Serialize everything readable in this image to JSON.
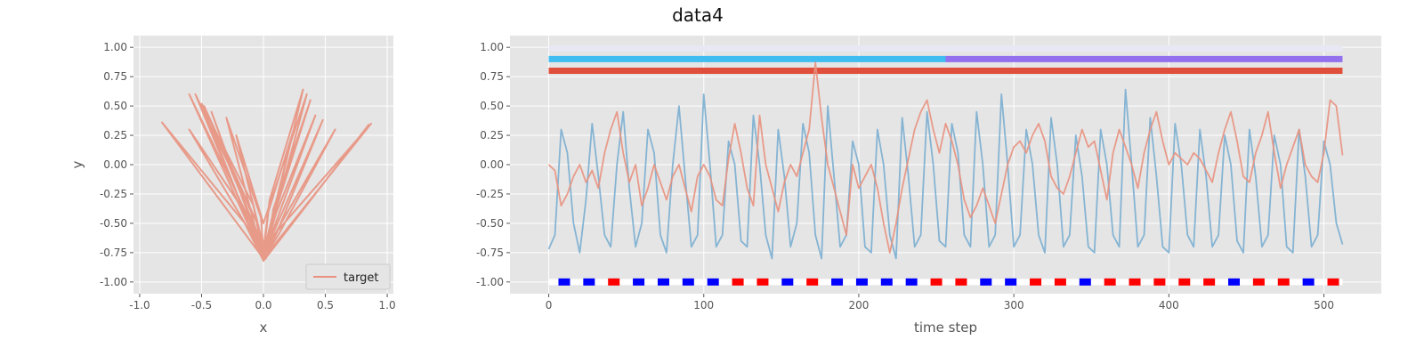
{
  "title": "data4",
  "chart_data": [
    {
      "type": "line",
      "xlabel": "x",
      "ylabel": "y",
      "xlim": [
        -1.05,
        1.05
      ],
      "ylim": [
        -1.1,
        1.1
      ],
      "xticks": [
        "-1.0",
        "-0.5",
        "0.0",
        "0.5",
        "1.0"
      ],
      "yticks": [
        "1.00",
        "0.75",
        "0.50",
        "0.25",
        "0.00",
        "-0.25",
        "-0.50",
        "-0.75",
        "-1.00"
      ],
      "grid": true,
      "legend": {
        "placement": "lower-right",
        "entries": [
          "target"
        ]
      },
      "colors": {
        "target": "#e8917e"
      },
      "series": [
        {
          "name": "target",
          "x": [
            0.0,
            -0.55,
            -0.1,
            -0.02,
            0.0,
            -0.5,
            -0.08,
            0.0,
            0.32,
            0.05,
            0.0,
            0.38,
            0.08,
            0.02,
            -0.6,
            -0.12,
            0.0,
            0.42,
            0.1,
            0.0,
            -0.82,
            -0.15,
            0.0,
            0.85,
            0.2,
            0.03,
            -0.48,
            -0.05,
            0.0,
            0.58,
            0.12,
            0.0,
            -0.3,
            -0.02,
            0.0,
            0.25,
            0.04,
            0.0,
            -0.42,
            -0.08,
            0.03,
            0.48,
            0.1,
            0.0,
            -0.6,
            -0.1,
            0.0,
            0.35,
            0.0,
            -0.22,
            0.0,
            0.87,
            0.15,
            0.0
          ],
          "y": [
            -0.8,
            0.6,
            -0.4,
            -0.75,
            -0.82,
            0.52,
            -0.35,
            -0.8,
            0.64,
            -0.3,
            -0.72,
            0.55,
            -0.38,
            -0.8,
            0.3,
            -0.45,
            -0.78,
            0.42,
            -0.42,
            -0.8,
            0.36,
            -0.5,
            -0.82,
            0.34,
            -0.55,
            -0.78,
            0.5,
            -0.5,
            -0.76,
            0.3,
            -0.6,
            -0.8,
            0.4,
            -0.45,
            -0.75,
            0.32,
            -0.4,
            -0.77,
            0.45,
            -0.55,
            -0.7,
            0.38,
            -0.6,
            -0.8,
            0.6,
            -0.5,
            -0.78,
            0.6,
            -0.5,
            0.25,
            -0.7,
            0.35,
            -0.6,
            -0.8
          ]
        }
      ]
    },
    {
      "type": "line",
      "xlabel": "time step",
      "ylabel": "",
      "xlim": [
        -25,
        537
      ],
      "ylim": [
        -1.1,
        1.1
      ],
      "xticks": [
        "0",
        "100",
        "200",
        "300",
        "400",
        "500"
      ],
      "yticks": [
        "1.00",
        "0.75",
        "0.50",
        "0.25",
        "0.00",
        "-0.25",
        "-0.50",
        "-0.75",
        "-1.00"
      ],
      "grid": true,
      "colors": {
        "blue_series": "#7aaed0",
        "red_series": "#e8917e",
        "band_top": "#e8e8f4",
        "band_cyan": "#3fbcf0",
        "band_purple": "#9370ee",
        "band_red": "#e04e3c",
        "marker_blue": "#0000ff",
        "marker_red": "#ff0000"
      },
      "bands": [
        {
          "y": 0.99,
          "start": 0,
          "end": 512,
          "color": "#e8e8f4"
        },
        {
          "y": 0.9,
          "start": 0,
          "end": 256,
          "color": "#3fbcf0"
        },
        {
          "y": 0.9,
          "start": 256,
          "end": 512,
          "color": "#9370ee"
        },
        {
          "y": 0.8,
          "start": 0,
          "end": 512,
          "color": "#e04e3c"
        }
      ],
      "markers": {
        "y": -1.0,
        "x": [
          10,
          26,
          42,
          58,
          74,
          90,
          106,
          122,
          138,
          154,
          170,
          186,
          202,
          218,
          234,
          250,
          266,
          282,
          298,
          314,
          330,
          346,
          362,
          378,
          394,
          410,
          426,
          442,
          458,
          474,
          490,
          506
        ],
        "colors": [
          "blue",
          "blue",
          "red",
          "blue",
          "blue",
          "blue",
          "blue",
          "red",
          "red",
          "blue",
          "red",
          "blue",
          "blue",
          "blue",
          "blue",
          "red",
          "red",
          "blue",
          "blue",
          "red",
          "red",
          "blue",
          "red",
          "red",
          "red",
          "red",
          "red",
          "blue",
          "red",
          "red",
          "blue",
          "red"
        ]
      },
      "series": [
        {
          "name": "",
          "color": "#7aaed0",
          "x": [
            0,
            4,
            8,
            12,
            16,
            20,
            24,
            28,
            32,
            36,
            40,
            44,
            48,
            52,
            56,
            60,
            64,
            68,
            72,
            76,
            80,
            84,
            88,
            92,
            96,
            100,
            104,
            108,
            112,
            116,
            120,
            124,
            128,
            132,
            136,
            140,
            144,
            148,
            152,
            156,
            160,
            164,
            168,
            172,
            176,
            180,
            184,
            188,
            192,
            196,
            200,
            204,
            208,
            212,
            216,
            220,
            224,
            228,
            232,
            236,
            240,
            244,
            248,
            252,
            256,
            260,
            264,
            268,
            272,
            276,
            280,
            284,
            288,
            292,
            296,
            300,
            304,
            308,
            312,
            316,
            320,
            324,
            328,
            332,
            336,
            340,
            344,
            348,
            352,
            356,
            360,
            364,
            368,
            372,
            376,
            380,
            384,
            388,
            392,
            396,
            400,
            404,
            408,
            412,
            416,
            420,
            424,
            428,
            432,
            436,
            440,
            444,
            448,
            452,
            456,
            460,
            464,
            468,
            472,
            476,
            480,
            484,
            488,
            492,
            496,
            500,
            504,
            508,
            512
          ],
          "y": [
            -0.72,
            -0.6,
            0.3,
            0.1,
            -0.5,
            -0.75,
            -0.3,
            0.35,
            -0.1,
            -0.6,
            -0.7,
            0.0,
            0.45,
            -0.2,
            -0.7,
            -0.5,
            0.3,
            0.1,
            -0.6,
            -0.75,
            0.0,
            0.5,
            -0.1,
            -0.7,
            -0.6,
            0.6,
            0.0,
            -0.7,
            -0.6,
            0.2,
            0.0,
            -0.65,
            -0.7,
            0.42,
            0.0,
            -0.6,
            -0.8,
            0.3,
            -0.1,
            -0.7,
            -0.5,
            0.35,
            0.1,
            -0.6,
            -0.8,
            0.5,
            -0.1,
            -0.7,
            -0.6,
            0.2,
            0.0,
            -0.7,
            -0.75,
            0.3,
            0.0,
            -0.6,
            -0.8,
            0.4,
            -0.1,
            -0.7,
            -0.6,
            0.45,
            0.0,
            -0.65,
            -0.7,
            0.35,
            0.1,
            -0.6,
            -0.7,
            0.45,
            0.0,
            -0.7,
            -0.6,
            0.6,
            0.0,
            -0.7,
            -0.6,
            0.3,
            0.0,
            -0.6,
            -0.75,
            0.4,
            0.0,
            -0.7,
            -0.6,
            0.25,
            -0.1,
            -0.7,
            -0.75,
            0.3,
            0.0,
            -0.6,
            -0.7,
            0.64,
            0.0,
            -0.7,
            -0.6,
            0.4,
            -0.1,
            -0.7,
            -0.75,
            0.35,
            0.0,
            -0.6,
            -0.7,
            0.3,
            -0.1,
            -0.7,
            -0.6,
            0.25,
            0.0,
            -0.65,
            -0.75,
            0.3,
            -0.1,
            -0.7,
            -0.6,
            0.25,
            0.0,
            -0.7,
            -0.75,
            0.3,
            -0.1,
            -0.7,
            -0.6,
            0.2,
            0.0,
            -0.5,
            -0.68
          ]
        },
        {
          "name": "",
          "color": "#e8917e",
          "x": [
            0,
            4,
            8,
            12,
            16,
            20,
            24,
            28,
            32,
            36,
            40,
            44,
            48,
            52,
            56,
            60,
            64,
            68,
            72,
            76,
            80,
            84,
            88,
            92,
            96,
            100,
            104,
            108,
            112,
            116,
            120,
            124,
            128,
            132,
            136,
            140,
            144,
            148,
            152,
            156,
            160,
            164,
            168,
            172,
            176,
            180,
            184,
            188,
            192,
            196,
            200,
            204,
            208,
            212,
            216,
            220,
            224,
            228,
            232,
            236,
            240,
            244,
            248,
            252,
            256,
            260,
            264,
            268,
            272,
            276,
            280,
            284,
            288,
            292,
            296,
            300,
            304,
            308,
            312,
            316,
            320,
            324,
            328,
            332,
            336,
            340,
            344,
            348,
            352,
            356,
            360,
            364,
            368,
            372,
            376,
            380,
            384,
            388,
            392,
            396,
            400,
            404,
            408,
            412,
            416,
            420,
            424,
            428,
            432,
            436,
            440,
            444,
            448,
            452,
            456,
            460,
            464,
            468,
            472,
            476,
            480,
            484,
            488,
            492,
            496,
            500,
            504,
            508,
            512
          ],
          "y": [
            0.0,
            -0.05,
            -0.35,
            -0.25,
            -0.1,
            0.0,
            -0.15,
            -0.05,
            -0.2,
            0.1,
            0.3,
            0.45,
            0.1,
            -0.15,
            0.0,
            -0.35,
            -0.2,
            0.0,
            -0.15,
            -0.3,
            -0.1,
            0.0,
            -0.2,
            -0.4,
            -0.1,
            0.0,
            -0.1,
            -0.3,
            -0.35,
            0.05,
            0.35,
            0.1,
            -0.2,
            -0.35,
            0.42,
            0.0,
            -0.2,
            -0.4,
            -0.15,
            0.0,
            -0.1,
            0.1,
            0.3,
            0.87,
            0.4,
            0.0,
            -0.2,
            -0.4,
            -0.6,
            0.0,
            -0.2,
            -0.1,
            0.0,
            -0.2,
            -0.5,
            -0.75,
            -0.5,
            -0.2,
            0.05,
            0.3,
            0.45,
            0.55,
            0.3,
            0.1,
            0.35,
            0.2,
            0.0,
            -0.3,
            -0.45,
            -0.35,
            -0.2,
            -0.35,
            -0.5,
            -0.25,
            0.0,
            0.15,
            0.2,
            0.1,
            0.25,
            0.35,
            0.2,
            -0.1,
            -0.2,
            -0.25,
            -0.1,
            0.1,
            0.3,
            0.15,
            0.2,
            -0.05,
            -0.3,
            0.1,
            0.3,
            0.15,
            0.0,
            -0.2,
            0.1,
            0.3,
            0.45,
            0.2,
            0.0,
            0.1,
            0.05,
            0.0,
            0.1,
            0.05,
            -0.05,
            -0.15,
            0.1,
            0.3,
            0.45,
            0.2,
            -0.1,
            -0.15,
            0.1,
            0.25,
            0.45,
            0.1,
            -0.2,
            0.0,
            0.15,
            0.3,
            0.0,
            -0.1,
            -0.15,
            0.1,
            0.55,
            0.5,
            0.08
          ]
        }
      ]
    }
  ]
}
